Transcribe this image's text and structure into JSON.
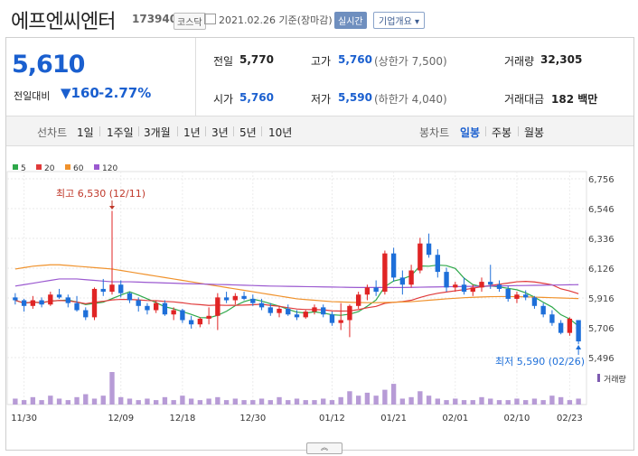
{
  "header": {
    "name": "에프엔씨엔터",
    "code": "173940",
    "market": "코스닥",
    "date": "2021.02.26 기준(장마감)",
    "realtime": "실시간",
    "company_info": "기업개요 ▾"
  },
  "quote": {
    "price": "5,610",
    "change_label": "전일대비",
    "change": "▼160",
    "change_pct": "-2.77%",
    "prev_label": "전일",
    "prev": "5,770",
    "open_label": "시가",
    "open": "5,760",
    "high_label": "고가",
    "high": "5,760",
    "high_limit": "(상한가 7,500)",
    "low_label": "저가",
    "low": "5,590",
    "low_limit": "(하한가 4,040)",
    "volume_label": "거래량",
    "volume": "32,305",
    "amount_label": "거래대금",
    "amount": "182 백만"
  },
  "periods": {
    "line_label": "선차트",
    "line_items": [
      "1일",
      "1주일",
      "3개월",
      "1년",
      "3년",
      "5년",
      "10년"
    ],
    "candle_label": "봉차트",
    "candle_items": [
      "일봉",
      "주봉",
      "월봉"
    ],
    "active_candle": "일봉"
  },
  "colors": {
    "up": "#e02424",
    "down": "#1e6fd9",
    "ma5": "#2ea84a",
    "ma20": "#e03a3a",
    "ma60": "#f0922c",
    "ma120": "#9b59d0"
  },
  "chart_data": {
    "type": "candlestick",
    "legend": [
      "5",
      "20",
      "60",
      "120"
    ],
    "y_ticks": [
      "6,756",
      "6,546",
      "6,336",
      "6,126",
      "5,916",
      "5,706",
      "5,496"
    ],
    "ylim": [
      5496,
      6756
    ],
    "x_labels": [
      "11/30",
      "12/09",
      "12/18",
      "12/30",
      "01/12",
      "01/21",
      "02/01",
      "02/10",
      "02/23"
    ],
    "max_annotation": "최고 6,530 (12/11)",
    "min_annotation": "최저 5,590 (02/26)",
    "volume_label": "거래량",
    "candles": [
      [
        5920,
        5950,
        5870,
        5900
      ],
      [
        5900,
        5910,
        5820,
        5860
      ],
      [
        5860,
        5930,
        5840,
        5900
      ],
      [
        5900,
        5920,
        5850,
        5870
      ],
      [
        5870,
        5960,
        5860,
        5940
      ],
      [
        5940,
        5980,
        5910,
        5920
      ],
      [
        5920,
        5940,
        5850,
        5880
      ],
      [
        5880,
        5930,
        5820,
        5830
      ],
      [
        5830,
        5850,
        5760,
        5780
      ],
      [
        5780,
        5990,
        5760,
        5980
      ],
      [
        5980,
        6050,
        5930,
        5960
      ],
      [
        5960,
        6530,
        5940,
        6010
      ],
      [
        6010,
        6040,
        5920,
        5950
      ],
      [
        5950,
        5960,
        5880,
        5900
      ],
      [
        5900,
        5920,
        5820,
        5860
      ],
      [
        5860,
        5880,
        5800,
        5830
      ],
      [
        5830,
        5900,
        5810,
        5880
      ],
      [
        5880,
        5900,
        5790,
        5800
      ],
      [
        5800,
        5850,
        5760,
        5830
      ],
      [
        5830,
        5840,
        5740,
        5760
      ],
      [
        5760,
        5790,
        5700,
        5730
      ],
      [
        5730,
        5780,
        5710,
        5770
      ],
      [
        5770,
        5850,
        5730,
        5790
      ],
      [
        5790,
        5950,
        5690,
        5920
      ],
      [
        5920,
        5960,
        5880,
        5900
      ],
      [
        5900,
        5950,
        5870,
        5930
      ],
      [
        5930,
        5960,
        5900,
        5910
      ],
      [
        5910,
        5940,
        5860,
        5880
      ],
      [
        5880,
        5910,
        5830,
        5850
      ],
      [
        5850,
        5880,
        5790,
        5810
      ],
      [
        5810,
        5860,
        5780,
        5840
      ],
      [
        5840,
        5870,
        5790,
        5800
      ],
      [
        5800,
        5830,
        5760,
        5780
      ],
      [
        5780,
        5830,
        5770,
        5820
      ],
      [
        5820,
        5870,
        5800,
        5850
      ],
      [
        5850,
        5870,
        5780,
        5800
      ],
      [
        5800,
        5820,
        5720,
        5740
      ],
      [
        5740,
        5880,
        5690,
        5760
      ],
      [
        5760,
        5870,
        5640,
        5860
      ],
      [
        5860,
        5960,
        5840,
        5940
      ],
      [
        5940,
        6010,
        5900,
        5990
      ],
      [
        5990,
        6040,
        5930,
        5960
      ],
      [
        5960,
        6250,
        5940,
        6230
      ],
      [
        6230,
        6270,
        6030,
        6060
      ],
      [
        6060,
        6110,
        5940,
        6010
      ],
      [
        6010,
        6150,
        5990,
        6110
      ],
      [
        6110,
        6340,
        6090,
        6300
      ],
      [
        6300,
        6370,
        6200,
        6220
      ],
      [
        6220,
        6260,
        6060,
        6100
      ],
      [
        6100,
        6130,
        5960,
        5990
      ],
      [
        5990,
        6030,
        5960,
        6010
      ],
      [
        6010,
        6060,
        5940,
        5960
      ],
      [
        5960,
        6010,
        5930,
        5990
      ],
      [
        5990,
        6060,
        5960,
        6030
      ],
      [
        6030,
        6150,
        5980,
        6010
      ],
      [
        6010,
        6040,
        5960,
        5980
      ],
      [
        5980,
        6000,
        5890,
        5910
      ],
      [
        5910,
        5960,
        5880,
        5940
      ],
      [
        5940,
        5970,
        5900,
        5920
      ],
      [
        5920,
        5930,
        5840,
        5860
      ],
      [
        5860,
        5880,
        5780,
        5800
      ],
      [
        5800,
        5830,
        5720,
        5740
      ],
      [
        5740,
        5760,
        5660,
        5670
      ],
      [
        5670,
        5780,
        5650,
        5770
      ],
      [
        5760,
        5760,
        5590,
        5610
      ]
    ],
    "volumes": [
      4,
      3,
      5,
      3,
      6,
      4,
      3,
      5,
      7,
      4,
      6,
      22,
      5,
      4,
      3,
      4,
      3,
      5,
      3,
      6,
      4,
      3,
      4,
      5,
      3,
      4,
      3,
      3,
      4,
      3,
      5,
      3,
      4,
      3,
      3,
      4,
      3,
      5,
      9,
      6,
      8,
      6,
      10,
      14,
      4,
      5,
      9,
      6,
      4,
      3,
      4,
      3,
      3,
      5,
      4,
      3,
      3,
      4,
      3,
      4,
      3,
      6,
      5,
      3,
      4
    ]
  }
}
